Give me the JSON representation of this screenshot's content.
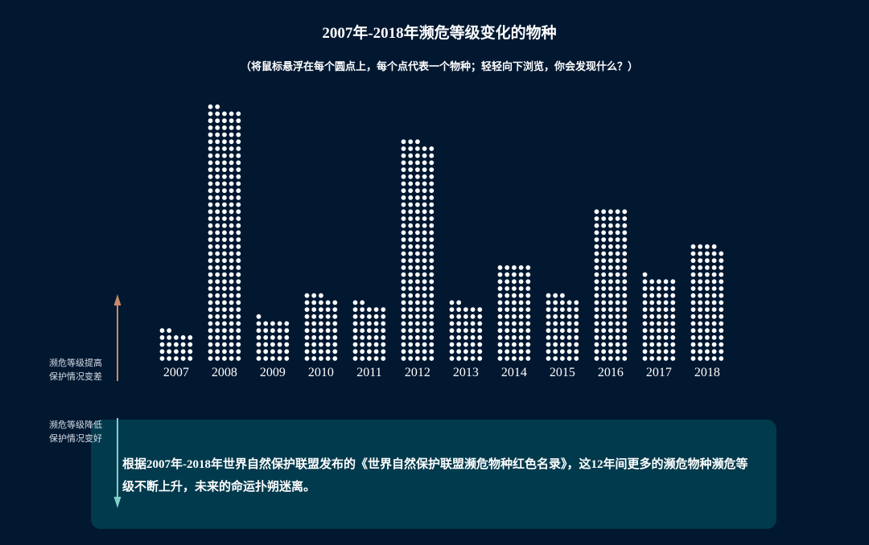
{
  "title": "2007年-2018年濒危等级变化的物种",
  "subtitle": "（将鼠标悬浮在每个圆点上，每个点代表一个物种；轻轻向下浏览，你会发现什么？）",
  "legend": {
    "up_line1": "濒危等级提高",
    "up_line2": "保护情况变差",
    "down_line1": "濒危等级降低",
    "down_line2": "保护情况变好"
  },
  "info_text": "根据2007年-2018年世界自然保护联盟发布的《世界自然保护联盟濒危物种红色名录》，这12年间更多的濒危物种濒危等级不断上升，未来的命运扑朔迷离。",
  "colors": {
    "background": "#021831",
    "dot": "#ffffff",
    "arrow_up": "#c98a6a",
    "arrow_down": "#7fd0c8",
    "info_box": "#023a4d"
  },
  "chart_data": {
    "type": "dot-column",
    "columns_per_bar": 5,
    "categories": [
      "2007",
      "2008",
      "2009",
      "2010",
      "2011",
      "2012",
      "2013",
      "2014",
      "2015",
      "2016",
      "2017",
      "2018"
    ],
    "values": [
      22,
      182,
      31,
      48,
      42,
      158,
      42,
      70,
      48,
      110,
      61,
      84
    ]
  }
}
